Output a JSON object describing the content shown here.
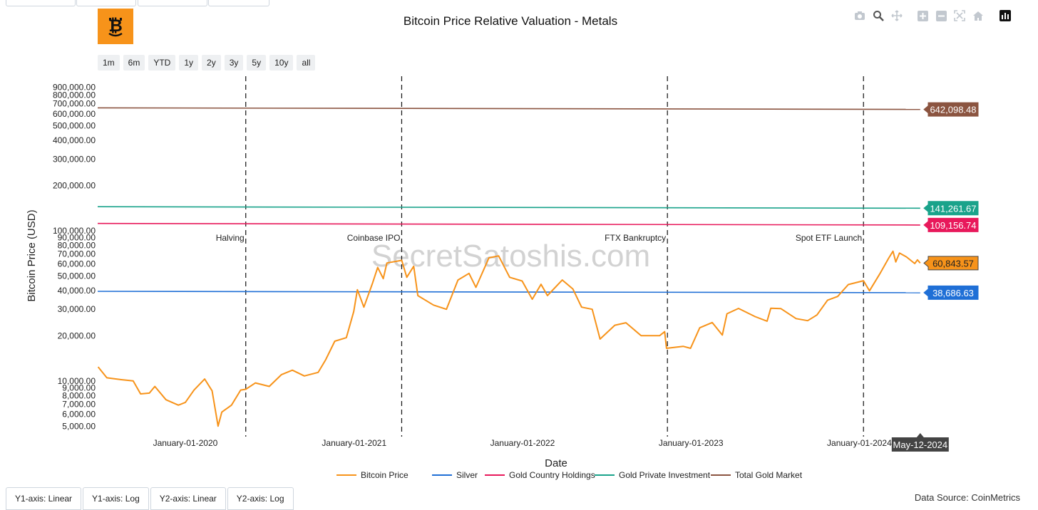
{
  "title": "Bitcoin Price Relative Valuation - Metals",
  "range_buttons": [
    "1m",
    "6m",
    "YTD",
    "1y",
    "2y",
    "3y",
    "5y",
    "10y",
    "all"
  ],
  "modebar": [
    "camera-icon",
    "zoom-icon",
    "pan-icon",
    "zoom-in-icon",
    "zoom-out-icon",
    "autoscale-icon",
    "reset-axes-icon",
    "plotly-logo-icon"
  ],
  "axis_tabs": [
    "Y1-axis: Linear",
    "Y1-axis: Log",
    "Y2-axis: Linear",
    "Y2-axis: Log"
  ],
  "source": "Data Source: CoinMetrics",
  "watermark": "SecretSatoshis.com",
  "hover_date": "May-12-2024",
  "colors": {
    "bitcoin": "#f7931a",
    "silver": "#1f6fd6",
    "gold_country": "#e8195b",
    "gold_private": "#1aa38b",
    "total_gold": "#8b5440",
    "logo_bg": "#f7931a"
  },
  "chart_data": {
    "type": "line",
    "title": "Bitcoin Price Relative Valuation - Metals",
    "xlabel": "Date",
    "ylabel": "Bitcoin Price (USD)",
    "yscale": "log",
    "xlim": [
      "2019-06-25",
      "2024-05-20"
    ],
    "ylim": [
      4700,
      1000000
    ],
    "x_ticks": [
      "January-01-2020",
      "January-01-2021",
      "January-01-2022",
      "January-01-2023",
      "January-01-2024"
    ],
    "y_ticks": [
      "5,000.00",
      "6,000.00",
      "7,000.00",
      "8,000.00",
      "9,000.00",
      "10,000.00",
      "20,000.00",
      "30,000.00",
      "40,000.00",
      "50,000.00",
      "60,000.00",
      "70,000.00",
      "80,000.00",
      "90,000.00",
      "100,000.00",
      "200,000.00",
      "300,000.00",
      "400,000.00",
      "500,000.00",
      "600,000.00",
      "700,000.00",
      "800,000.00",
      "900,000.00"
    ],
    "events": [
      {
        "date": "2020-05-11",
        "label": "Halving"
      },
      {
        "date": "2021-04-14",
        "label": "Coinbase IPO"
      },
      {
        "date": "2022-11-11",
        "label": "FTX Bankruptcy"
      },
      {
        "date": "2024-01-10",
        "label": "Spot ETF Launch"
      }
    ],
    "legend": [
      "Bitcoin Price",
      "Silver",
      "Gold Country Holdings",
      "Gold Private Investment",
      "Total Gold Market"
    ],
    "legend_position": "bottom",
    "grid": false,
    "series": [
      {
        "name": "Bitcoin Price",
        "last_label": "60,843.57",
        "points": [
          [
            "2019-06-26",
            12400
          ],
          [
            "2019-07-15",
            10500
          ],
          [
            "2019-08-15",
            10200
          ],
          [
            "2019-09-10",
            10000
          ],
          [
            "2019-09-26",
            8200
          ],
          [
            "2019-10-15",
            8300
          ],
          [
            "2019-10-27",
            9200
          ],
          [
            "2019-11-20",
            7500
          ],
          [
            "2019-12-17",
            6900
          ],
          [
            "2020-01-01",
            7200
          ],
          [
            "2020-01-20",
            8700
          ],
          [
            "2020-02-12",
            10300
          ],
          [
            "2020-02-28",
            8600
          ],
          [
            "2020-03-12",
            5000
          ],
          [
            "2020-03-20",
            6200
          ],
          [
            "2020-04-10",
            6900
          ],
          [
            "2020-04-30",
            8700
          ],
          [
            "2020-05-11",
            8800
          ],
          [
            "2020-06-01",
            9700
          ],
          [
            "2020-07-01",
            9200
          ],
          [
            "2020-07-27",
            11000
          ],
          [
            "2020-08-20",
            11800
          ],
          [
            "2020-09-15",
            10800
          ],
          [
            "2020-10-15",
            11400
          ],
          [
            "2020-10-31",
            13800
          ],
          [
            "2020-11-20",
            18400
          ],
          [
            "2020-12-15",
            19400
          ],
          [
            "2020-12-31",
            29000
          ],
          [
            "2021-01-08",
            40500
          ],
          [
            "2021-01-22",
            31000
          ],
          [
            "2021-02-10",
            45000
          ],
          [
            "2021-02-21",
            57000
          ],
          [
            "2021-03-05",
            48000
          ],
          [
            "2021-03-13",
            61000
          ],
          [
            "2021-04-14",
            63500
          ],
          [
            "2021-04-25",
            49000
          ],
          [
            "2021-05-10",
            58000
          ],
          [
            "2021-05-19",
            37000
          ],
          [
            "2021-06-22",
            32000
          ],
          [
            "2021-07-20",
            30000
          ],
          [
            "2021-08-14",
            47000
          ],
          [
            "2021-09-07",
            52000
          ],
          [
            "2021-09-22",
            42000
          ],
          [
            "2021-10-20",
            66000
          ],
          [
            "2021-11-10",
            68000
          ],
          [
            "2021-12-04",
            49000
          ],
          [
            "2021-12-31",
            46300
          ],
          [
            "2022-01-22",
            35000
          ],
          [
            "2022-02-10",
            44000
          ],
          [
            "2022-02-24",
            37000
          ],
          [
            "2022-03-28",
            47000
          ],
          [
            "2022-04-20",
            41000
          ],
          [
            "2022-05-09",
            31000
          ],
          [
            "2022-06-01",
            30000
          ],
          [
            "2022-06-18",
            19000
          ],
          [
            "2022-07-20",
            23500
          ],
          [
            "2022-08-13",
            24400
          ],
          [
            "2022-09-15",
            20000
          ],
          [
            "2022-10-25",
            20000
          ],
          [
            "2022-11-05",
            21300
          ],
          [
            "2022-11-09",
            16500
          ],
          [
            "2022-12-15",
            17000
          ],
          [
            "2022-12-31",
            16500
          ],
          [
            "2023-01-20",
            22600
          ],
          [
            "2023-02-16",
            24500
          ],
          [
            "2023-03-10",
            20200
          ],
          [
            "2023-03-20",
            28000
          ],
          [
            "2023-04-14",
            30400
          ],
          [
            "2023-05-20",
            26800
          ],
          [
            "2023-06-15",
            25000
          ],
          [
            "2023-06-23",
            30500
          ],
          [
            "2023-07-15",
            30300
          ],
          [
            "2023-08-17",
            26000
          ],
          [
            "2023-09-11",
            25200
          ],
          [
            "2023-10-01",
            27500
          ],
          [
            "2023-10-24",
            34500
          ],
          [
            "2023-11-15",
            36500
          ],
          [
            "2023-12-08",
            43800
          ],
          [
            "2024-01-10",
            46500
          ],
          [
            "2024-01-23",
            39800
          ],
          [
            "2024-02-15",
            52000
          ],
          [
            "2024-03-05",
            66000
          ],
          [
            "2024-03-14",
            73000
          ],
          [
            "2024-03-20",
            62000
          ],
          [
            "2024-03-28",
            71000
          ],
          [
            "2024-04-12",
            67000
          ],
          [
            "2024-04-30",
            60500
          ],
          [
            "2024-05-06",
            64000
          ],
          [
            "2024-05-12",
            60843.57
          ]
        ]
      },
      {
        "name": "Silver",
        "last_label": "38,686.63",
        "points": [
          [
            "2019-06-25",
            39500
          ],
          [
            "2024-05-12",
            38686.63
          ]
        ]
      },
      {
        "name": "Gold Country Holdings",
        "last_label": "109,156.74",
        "points": [
          [
            "2019-06-25",
            111800
          ],
          [
            "2024-05-12",
            109156.74
          ]
        ]
      },
      {
        "name": "Gold Private Investment",
        "last_label": "141,261.67",
        "points": [
          [
            "2019-06-25",
            144500
          ],
          [
            "2024-05-12",
            141261.67
          ]
        ]
      },
      {
        "name": "Total Gold Market",
        "last_label": "642,098.48",
        "points": [
          [
            "2019-06-25",
            657500
          ],
          [
            "2024-05-12",
            642098.48
          ]
        ]
      }
    ]
  }
}
